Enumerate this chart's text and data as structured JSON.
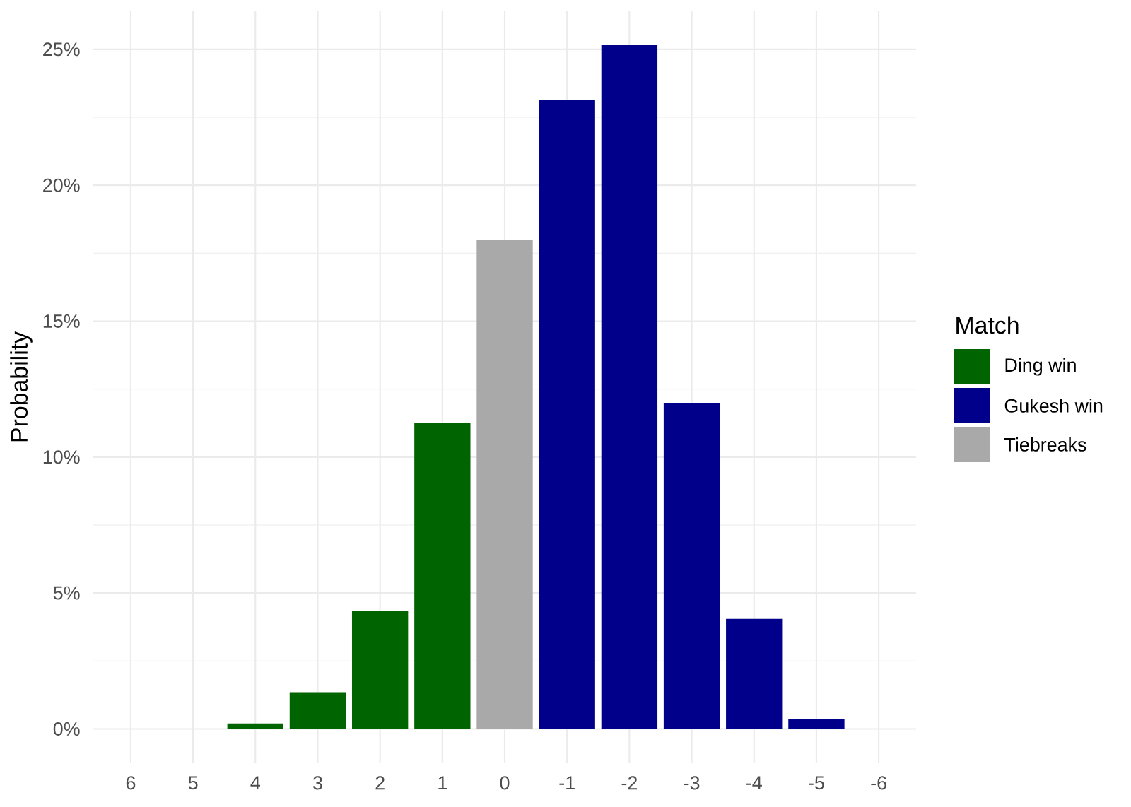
{
  "chart_data": {
    "type": "bar",
    "categories": [
      "6",
      "5",
      "4",
      "3",
      "2",
      "1",
      "0",
      "-1",
      "-2",
      "-3",
      "-4",
      "-5",
      "-6"
    ],
    "series": [
      {
        "name": "Ding win",
        "color": "#006400",
        "values": [
          null,
          null,
          0.2,
          1.35,
          4.35,
          11.25,
          null,
          null,
          null,
          null,
          null,
          null,
          null
        ]
      },
      {
        "name": "Gukesh win",
        "color": "#00008b",
        "values": [
          null,
          null,
          null,
          null,
          null,
          null,
          null,
          23.15,
          25.15,
          12.0,
          4.05,
          0.35,
          null
        ]
      },
      {
        "name": "Tiebreaks",
        "color": "#a9a9a9",
        "values": [
          null,
          null,
          null,
          null,
          null,
          null,
          18.0,
          null,
          null,
          null,
          null,
          null,
          null
        ]
      }
    ],
    "ylabel": "Probability",
    "legend_title": "Match",
    "legend": "right",
    "grid": true,
    "ylim": [
      -1.26,
      26.4
    ],
    "yticks": [
      {
        "value": 0,
        "label": "0%"
      },
      {
        "value": 2.5,
        "label": null
      },
      {
        "value": 5,
        "label": "5%"
      },
      {
        "value": 7.5,
        "label": null
      },
      {
        "value": 10,
        "label": "10%"
      },
      {
        "value": 12.5,
        "label": null
      },
      {
        "value": 15,
        "label": "15%"
      },
      {
        "value": 17.5,
        "label": null
      },
      {
        "value": 20,
        "label": "20%"
      },
      {
        "value": 22.5,
        "label": null
      },
      {
        "value": 25,
        "label": "25%"
      }
    ]
  }
}
